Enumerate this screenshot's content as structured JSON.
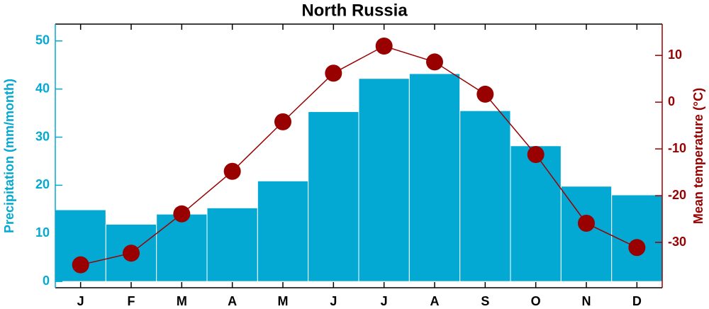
{
  "chart_data": {
    "type": "bar-line",
    "title": "North Russia",
    "categories": [
      "J",
      "F",
      "M",
      "A",
      "M",
      "J",
      "J",
      "A",
      "S",
      "O",
      "N",
      "D"
    ],
    "ylabel": "Precipitation (mm/month)",
    "y2label": "Mean temperature (°C)",
    "ylim": [
      -1.3,
      53.5
    ],
    "yticks": [
      0,
      10,
      20,
      30,
      40,
      50
    ],
    "y2lim": [
      -39.7,
      16.7
    ],
    "y2ticks": [
      -30,
      -20,
      -10,
      0,
      10
    ],
    "series": [
      {
        "name": "Precipitation",
        "type": "bar",
        "color": "#03a9d3",
        "values": [
          14.9,
          11.9,
          14.0,
          15.3,
          20.9,
          35.3,
          42.2,
          43.2,
          35.5,
          28.2,
          19.8,
          18.0
        ]
      },
      {
        "name": "Mean temperature",
        "type": "line",
        "axis": "y2",
        "color": "#990000",
        "values": [
          -34.8,
          -32.3,
          -23.9,
          -14.8,
          -4.2,
          6.2,
          12.0,
          8.6,
          1.7,
          -11.2,
          -25.9,
          -31.1
        ]
      }
    ]
  }
}
